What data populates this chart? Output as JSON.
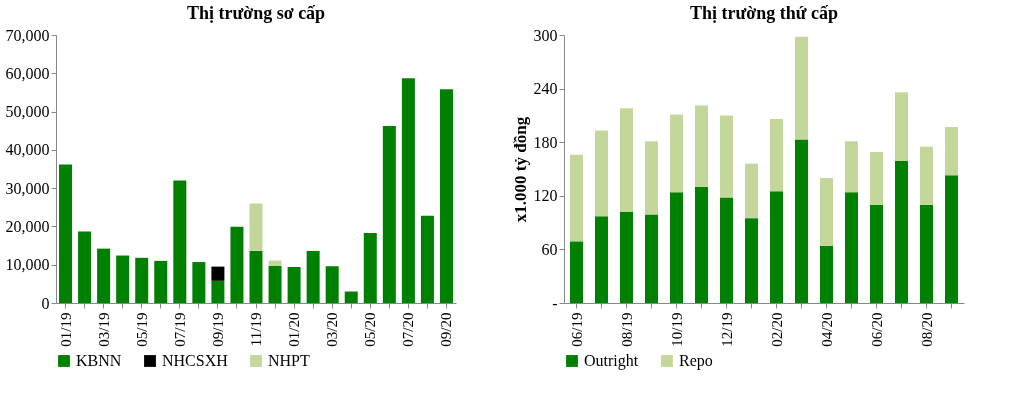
{
  "chart_data": [
    {
      "type": "bar",
      "title": "Thị trường sơ cấp",
      "stacked": true,
      "legend": "bottom",
      "grid": false,
      "categories": [
        "01/19",
        null,
        "03/19",
        null,
        "05/19",
        null,
        "07/19",
        null,
        "09/19",
        null,
        "11/19",
        null,
        "01/20",
        null,
        "03/20",
        null,
        "05/20",
        null,
        "07/20",
        null,
        "09/20"
      ],
      "series": [
        {
          "name": "KBNN",
          "color": "#008000",
          "values": [
            36200,
            18700,
            14200,
            12400,
            11800,
            11000,
            32000,
            10700,
            5800,
            19900,
            13600,
            9700,
            9400,
            13600,
            9600,
            3000,
            18300,
            46200,
            58700,
            22800,
            55800
          ]
        },
        {
          "name": "NHCSXH",
          "color": "#000000",
          "values": [
            null,
            null,
            null,
            null,
            null,
            null,
            null,
            null,
            3700,
            null,
            null,
            null,
            null,
            null,
            null,
            null,
            null,
            null,
            null,
            null,
            null
          ]
        },
        {
          "name": "NHPT",
          "color": "#c4d79b",
          "values": [
            null,
            null,
            null,
            null,
            null,
            null,
            null,
            null,
            null,
            null,
            12400,
            1400,
            null,
            null,
            null,
            null,
            null,
            null,
            null,
            null,
            null
          ]
        }
      ],
      "ylim": [
        0,
        70000
      ],
      "yticks": [
        0,
        {
          "value": 10000,
          "label": "10,000"
        },
        {
          "value": 20000,
          "label": "20,000"
        },
        {
          "value": 30000,
          "label": "30,000"
        },
        {
          "value": 40000,
          "label": "40,000"
        },
        {
          "value": 50000,
          "label": "50,000"
        },
        {
          "value": 60000,
          "label": "60,000"
        },
        {
          "value": 70000,
          "label": "70,000"
        }
      ]
    },
    {
      "type": "bar",
      "title": "Thị trường thứ cấp",
      "ylabel": "x1.000 tỷ đồng",
      "stacked": true,
      "legend": "bottom",
      "grid": false,
      "categories": [
        "06/19",
        null,
        "08/19",
        null,
        "10/19",
        null,
        "12/19",
        null,
        "02/20",
        null,
        "04/20",
        null,
        "06/20",
        null,
        "08/20",
        null
      ],
      "series": [
        {
          "name": "Outright",
          "color": "#008000",
          "values": [
            69,
            97,
            102,
            99,
            124,
            130,
            118,
            95,
            125,
            183,
            64,
            124,
            110,
            159,
            110,
            143
          ]
        },
        {
          "name": "Repo",
          "color": "#c4d79b",
          "values": [
            97,
            96,
            116,
            82,
            87,
            91,
            92,
            61,
            81,
            115,
            76,
            57,
            59,
            77,
            65,
            54
          ]
        }
      ],
      "ylim": [
        0,
        300
      ],
      "yticks": [
        {
          "value": 0,
          "label": "-"
        },
        60,
        120,
        180,
        240,
        300
      ]
    }
  ]
}
